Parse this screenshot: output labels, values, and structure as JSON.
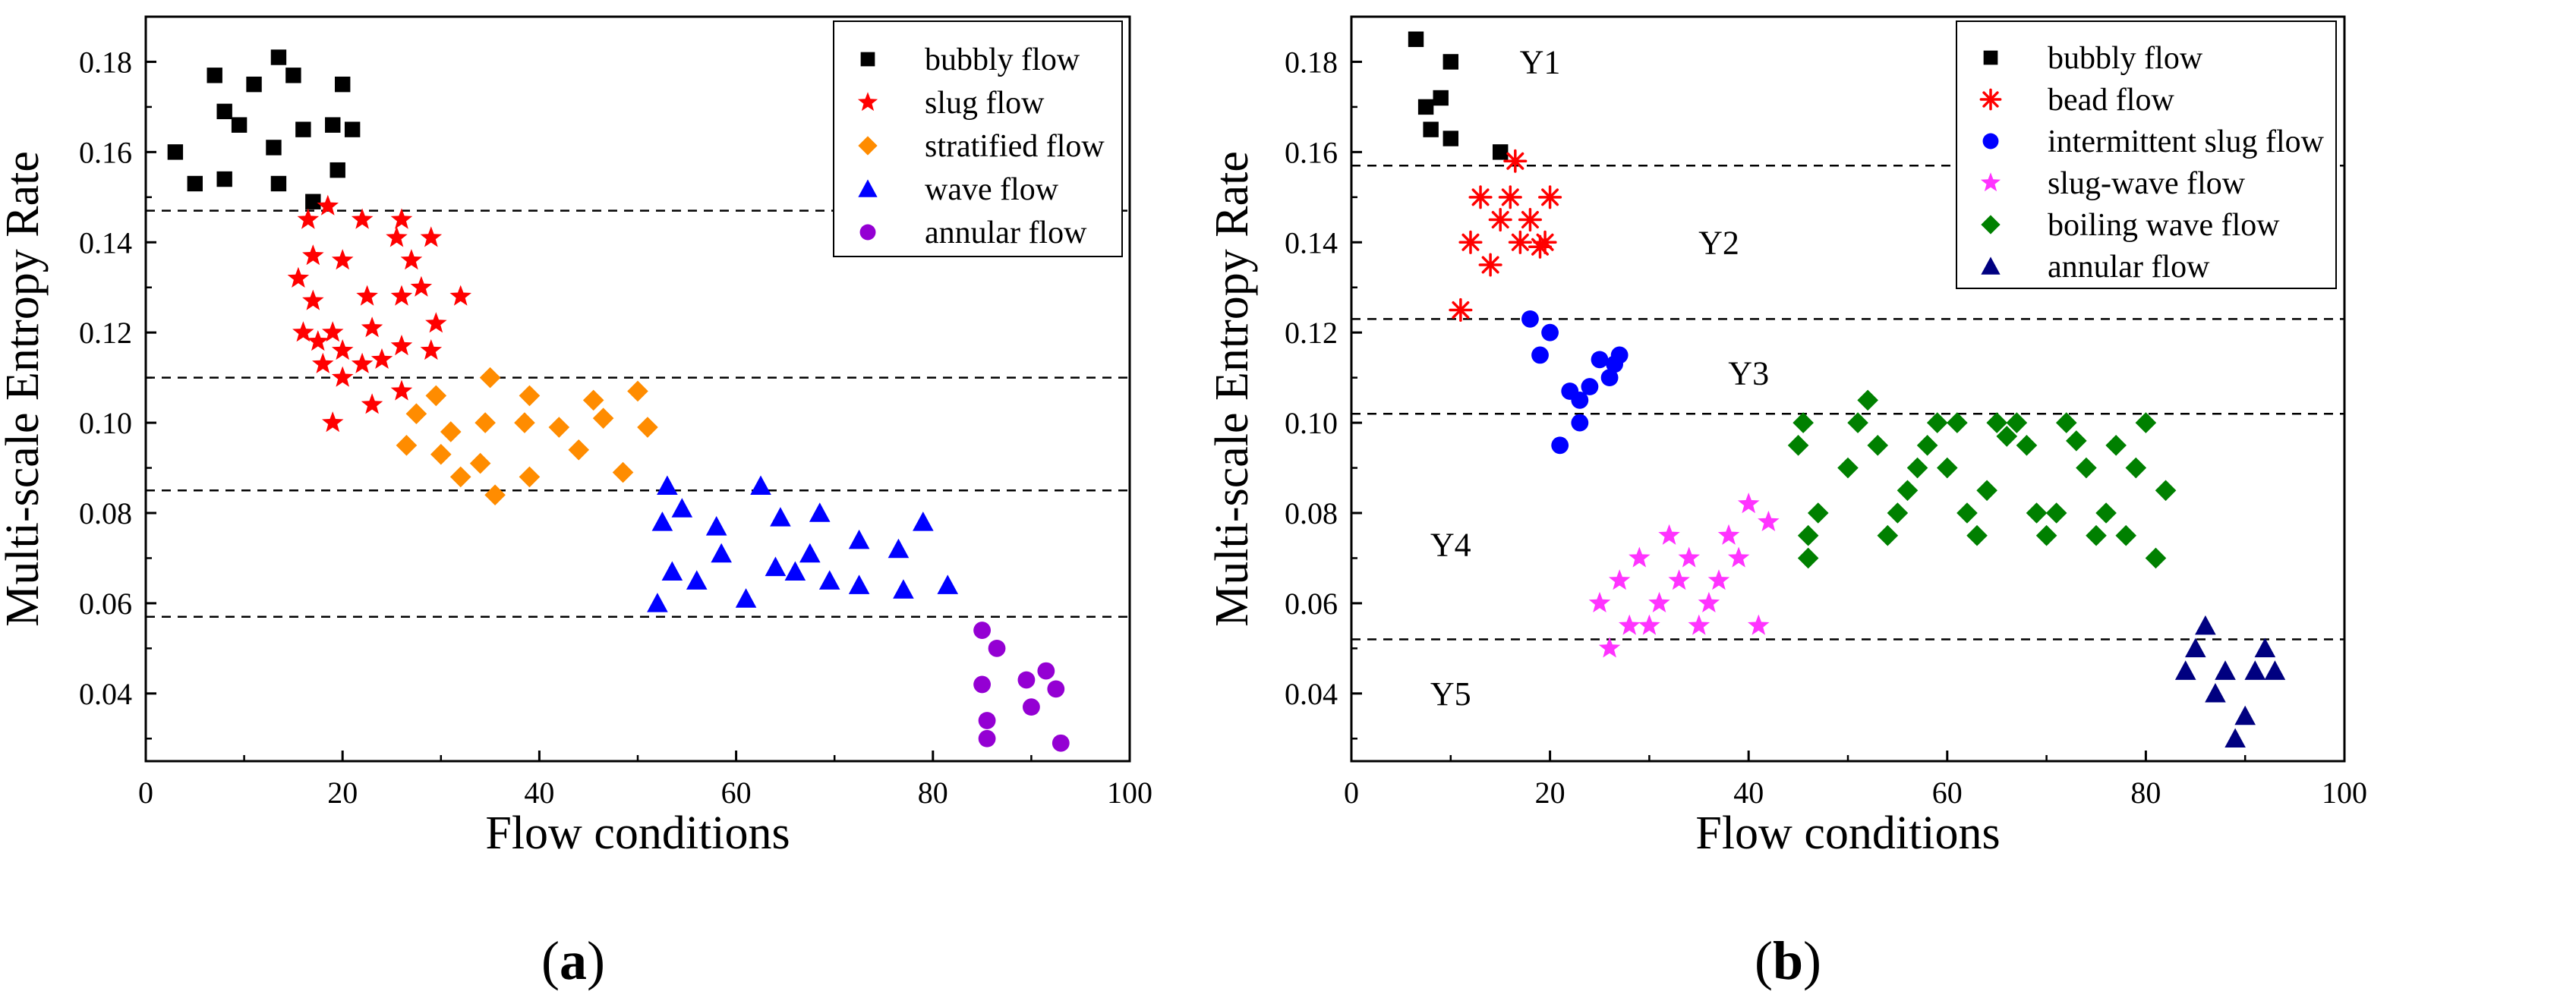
{
  "chart_data": [
    {
      "type": "scatter",
      "panel": "a",
      "panel_label_open": "(",
      "panel_label_letter": "a",
      "panel_label_close": ")",
      "xlabel": "Flow conditions",
      "ylabel": "Multi-scale Entropy Rate",
      "xlim": [
        0,
        100
      ],
      "ylim": [
        0.025,
        0.19
      ],
      "xticks": [
        0,
        20,
        40,
        60,
        80,
        100
      ],
      "yticks": [
        0.04,
        0.06,
        0.08,
        0.1,
        0.12,
        0.14,
        0.16,
        0.18
      ],
      "ytick_labels": [
        "0.04",
        "0.06",
        "0.08",
        "0.10",
        "0.12",
        "0.14",
        "0.16",
        "0.18"
      ],
      "thresholds": [
        0.147,
        0.11,
        0.085,
        0.057
      ],
      "legend_position": "top-right",
      "region_labels": [],
      "series": [
        {
          "name": "bubbly flow",
          "marker": "square",
          "color": "#000000",
          "points": [
            [
              3,
              0.16
            ],
            [
              5,
              0.153
            ],
            [
              7,
              0.177
            ],
            [
              8,
              0.169
            ],
            [
              8,
              0.154
            ],
            [
              9.5,
              0.166
            ],
            [
              11,
              0.175
            ],
            [
              13,
              0.161
            ],
            [
              13.5,
              0.181
            ],
            [
              15,
              0.177
            ],
            [
              13.5,
              0.153
            ],
            [
              16,
              0.165
            ],
            [
              17,
              0.149
            ],
            [
              19,
              0.166
            ],
            [
              19.5,
              0.156
            ],
            [
              20,
              0.175
            ],
            [
              21,
              0.165
            ]
          ]
        },
        {
          "name": "slug flow",
          "marker": "star",
          "color": "#ff0000",
          "points": [
            [
              15.5,
              0.132
            ],
            [
              16,
              0.12
            ],
            [
              16.5,
              0.145
            ],
            [
              17,
              0.127
            ],
            [
              17,
              0.137
            ],
            [
              17.5,
              0.118
            ],
            [
              18,
              0.113
            ],
            [
              18.5,
              0.148
            ],
            [
              19,
              0.1
            ],
            [
              19,
              0.12
            ],
            [
              20,
              0.116
            ],
            [
              20,
              0.136
            ],
            [
              20,
              0.11
            ],
            [
              22,
              0.145
            ],
            [
              22,
              0.113
            ],
            [
              22.5,
              0.128
            ],
            [
              23,
              0.121
            ],
            [
              23,
              0.104
            ],
            [
              24,
              0.114
            ],
            [
              25.5,
              0.141
            ],
            [
              26,
              0.145
            ],
            [
              26,
              0.128
            ],
            [
              26,
              0.117
            ],
            [
              26,
              0.107
            ],
            [
              27,
              0.136
            ],
            [
              28,
              0.13
            ],
            [
              29,
              0.141
            ],
            [
              29,
              0.116
            ],
            [
              29.5,
              0.122
            ],
            [
              32,
              0.128
            ]
          ]
        },
        {
          "name": "stratified flow",
          "marker": "diamond",
          "color": "#ff8c00",
          "points": [
            [
              26.5,
              0.095
            ],
            [
              27.5,
              0.102
            ],
            [
              29.5,
              0.106
            ],
            [
              30,
              0.093
            ],
            [
              31,
              0.098
            ],
            [
              32,
              0.088
            ],
            [
              34,
              0.091
            ],
            [
              34.5,
              0.1
            ],
            [
              35,
              0.11
            ],
            [
              35.5,
              0.084
            ],
            [
              38.5,
              0.1
            ],
            [
              39,
              0.106
            ],
            [
              39,
              0.088
            ],
            [
              42,
              0.099
            ],
            [
              44,
              0.094
            ],
            [
              45.5,
              0.105
            ],
            [
              46.5,
              0.101
            ],
            [
              48.5,
              0.089
            ],
            [
              50,
              0.107
            ],
            [
              51,
              0.099
            ]
          ]
        },
        {
          "name": "wave flow",
          "marker": "triangle",
          "color": "#0000ff",
          "points": [
            [
              52,
              0.06
            ],
            [
              52.5,
              0.078
            ],
            [
              53,
              0.086
            ],
            [
              53.5,
              0.067
            ],
            [
              54.5,
              0.081
            ],
            [
              56,
              0.065
            ],
            [
              58,
              0.077
            ],
            [
              58.5,
              0.071
            ],
            [
              61,
              0.061
            ],
            [
              62.5,
              0.086
            ],
            [
              64,
              0.068
            ],
            [
              64.5,
              0.079
            ],
            [
              66,
              0.067
            ],
            [
              67.5,
              0.071
            ],
            [
              68.5,
              0.08
            ],
            [
              69.5,
              0.065
            ],
            [
              72.5,
              0.074
            ],
            [
              72.5,
              0.064
            ],
            [
              76.5,
              0.072
            ],
            [
              77,
              0.063
            ],
            [
              79,
              0.078
            ],
            [
              81.5,
              0.064
            ]
          ]
        },
        {
          "name": "annular flow",
          "marker": "circle",
          "color": "#9400d3",
          "points": [
            [
              85,
              0.054
            ],
            [
              85,
              0.042
            ],
            [
              85.5,
              0.03
            ],
            [
              85.5,
              0.034
            ],
            [
              86.5,
              0.05
            ],
            [
              89.5,
              0.043
            ],
            [
              90,
              0.037
            ],
            [
              91.5,
              0.045
            ],
            [
              92.5,
              0.041
            ],
            [
              93,
              0.029
            ]
          ]
        }
      ]
    },
    {
      "type": "scatter",
      "panel": "b",
      "panel_label_open": "(",
      "panel_label_letter": "b",
      "panel_label_close": ")",
      "xlabel": "Flow conditions",
      "ylabel": "Multi-scale Entropy Rate",
      "xlim": [
        0,
        100
      ],
      "ylim": [
        0.025,
        0.19
      ],
      "xticks": [
        0,
        20,
        40,
        60,
        80,
        100
      ],
      "yticks": [
        0.04,
        0.06,
        0.08,
        0.1,
        0.12,
        0.14,
        0.16,
        0.18
      ],
      "ytick_labels": [
        "0.04",
        "0.06",
        "0.08",
        "0.10",
        "0.12",
        "0.14",
        "0.16",
        "0.18"
      ],
      "thresholds": [
        0.157,
        0.123,
        0.102,
        0.052
      ],
      "legend_position": "top-right",
      "region_labels": [
        {
          "text": "Y1",
          "x": 19,
          "y": 0.18
        },
        {
          "text": "Y2",
          "x": 37,
          "y": 0.14
        },
        {
          "text": "Y3",
          "x": 40,
          "y": 0.111
        },
        {
          "text": "Y4",
          "x": 10,
          "y": 0.073
        },
        {
          "text": "Y5",
          "x": 10,
          "y": 0.04
        }
      ],
      "series": [
        {
          "name": "bubbly flow",
          "marker": "square",
          "color": "#000000",
          "points": [
            [
              6.5,
              0.185
            ],
            [
              7.5,
              0.17
            ],
            [
              8,
              0.165
            ],
            [
              9,
              0.172
            ],
            [
              10,
              0.18
            ],
            [
              10,
              0.163
            ],
            [
              15,
              0.16
            ]
          ]
        },
        {
          "name": "bead flow",
          "marker": "asterisk",
          "color": "#ff0000",
          "points": [
            [
              11,
              0.125
            ],
            [
              12,
              0.14
            ],
            [
              13,
              0.15
            ],
            [
              14,
              0.135
            ],
            [
              15,
              0.145
            ],
            [
              16,
              0.15
            ],
            [
              16.5,
              0.158
            ],
            [
              17,
              0.14
            ],
            [
              18,
              0.145
            ],
            [
              19,
              0.139
            ],
            [
              19.5,
              0.14
            ],
            [
              20,
              0.15
            ]
          ]
        },
        {
          "name": "intermittent slug flow",
          "marker": "circle",
          "color": "#0000ff",
          "points": [
            [
              18,
              0.123
            ],
            [
              19,
              0.115
            ],
            [
              20,
              0.12
            ],
            [
              21,
              0.095
            ],
            [
              22,
              0.107
            ],
            [
              23,
              0.1
            ],
            [
              23,
              0.105
            ],
            [
              24,
              0.108
            ],
            [
              25,
              0.114
            ],
            [
              26,
              0.11
            ],
            [
              26.5,
              0.113
            ],
            [
              27,
              0.115
            ]
          ]
        },
        {
          "name": "slug-wave flow",
          "marker": "star",
          "color": "#ff33ff",
          "points": [
            [
              25,
              0.06
            ],
            [
              26,
              0.05
            ],
            [
              27,
              0.065
            ],
            [
              28,
              0.055
            ],
            [
              29,
              0.07
            ],
            [
              30,
              0.055
            ],
            [
              31,
              0.06
            ],
            [
              32,
              0.075
            ],
            [
              33,
              0.065
            ],
            [
              34,
              0.07
            ],
            [
              35,
              0.055
            ],
            [
              36,
              0.06
            ],
            [
              37,
              0.065
            ],
            [
              38,
              0.075
            ],
            [
              39,
              0.07
            ],
            [
              40,
              0.082
            ],
            [
              41,
              0.055
            ],
            [
              42,
              0.078
            ]
          ]
        },
        {
          "name": "boiling wave flow",
          "marker": "diamond",
          "color": "#008000",
          "points": [
            [
              45,
              0.095
            ],
            [
              45.5,
              0.1
            ],
            [
              46,
              0.075
            ],
            [
              46,
              0.07
            ],
            [
              47,
              0.08
            ],
            [
              50,
              0.09
            ],
            [
              51,
              0.1
            ],
            [
              52,
              0.105
            ],
            [
              53,
              0.095
            ],
            [
              54,
              0.075
            ],
            [
              55,
              0.08
            ],
            [
              56,
              0.085
            ],
            [
              57,
              0.09
            ],
            [
              58,
              0.095
            ],
            [
              59,
              0.1
            ],
            [
              60,
              0.09
            ],
            [
              61,
              0.1
            ],
            [
              62,
              0.08
            ],
            [
              63,
              0.075
            ],
            [
              64,
              0.085
            ],
            [
              65,
              0.1
            ],
            [
              66,
              0.097
            ],
            [
              67,
              0.1
            ],
            [
              68,
              0.095
            ],
            [
              69,
              0.08
            ],
            [
              70,
              0.075
            ],
            [
              71,
              0.08
            ],
            [
              72,
              0.1
            ],
            [
              73,
              0.096
            ],
            [
              74,
              0.09
            ],
            [
              75,
              0.075
            ],
            [
              76,
              0.08
            ],
            [
              77,
              0.095
            ],
            [
              78,
              0.075
            ],
            [
              79,
              0.09
            ],
            [
              80,
              0.1
            ],
            [
              81,
              0.07
            ],
            [
              82,
              0.085
            ]
          ]
        },
        {
          "name": "annular flow",
          "marker": "triangle",
          "color": "#000080",
          "points": [
            [
              84,
              0.045
            ],
            [
              85,
              0.05
            ],
            [
              86,
              0.055
            ],
            [
              87,
              0.04
            ],
            [
              88,
              0.045
            ],
            [
              89,
              0.03
            ],
            [
              90,
              0.035
            ],
            [
              91,
              0.045
            ],
            [
              92,
              0.05
            ],
            [
              93,
              0.045
            ]
          ]
        }
      ]
    }
  ]
}
